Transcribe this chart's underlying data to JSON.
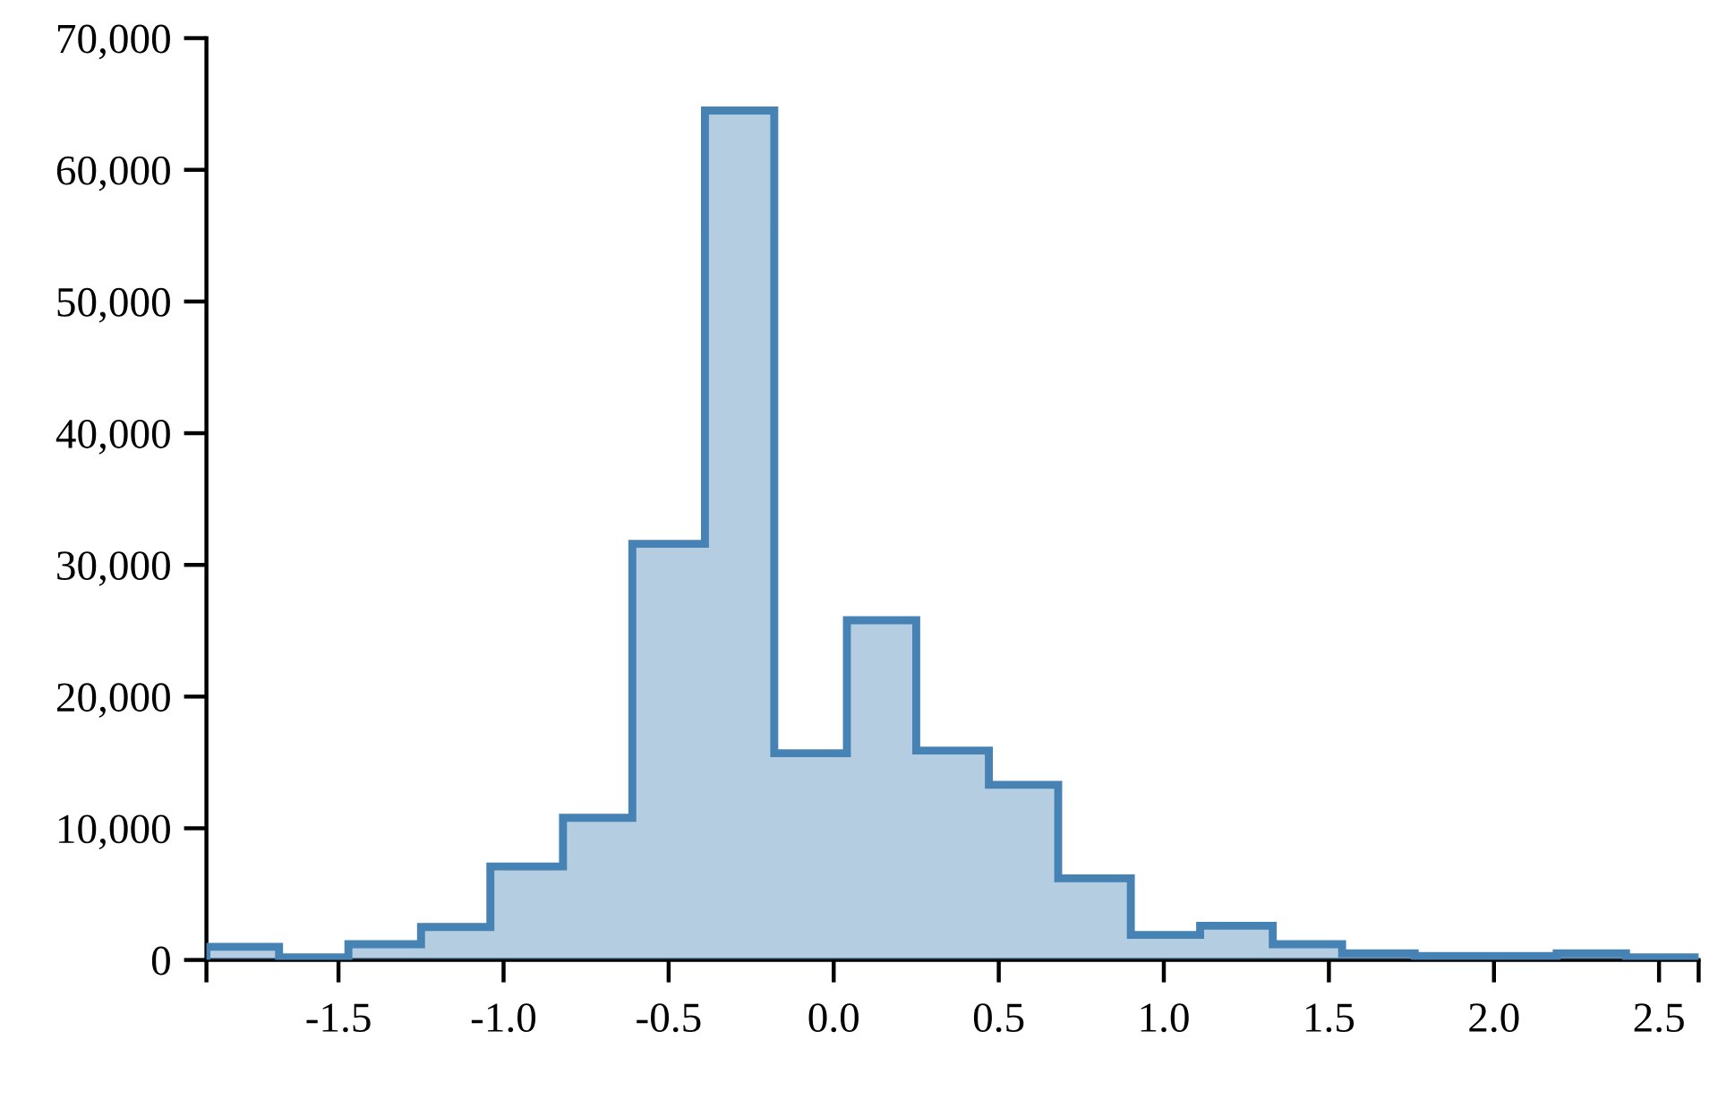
{
  "chart_data": {
    "type": "histogram",
    "bins": [
      -1.9,
      -1.68,
      -1.47,
      -1.25,
      -1.04,
      -0.82,
      -0.61,
      -0.39,
      -0.18,
      0.04,
      0.25,
      0.47,
      0.68,
      0.9,
      1.11,
      1.33,
      1.54,
      1.76,
      1.97,
      2.19,
      2.4,
      2.62
    ],
    "values": [
      1000,
      200,
      1200,
      2500,
      7100,
      10800,
      31600,
      64500,
      15700,
      25800,
      15900,
      13300,
      6200,
      1900,
      2600,
      1200,
      500,
      300,
      300,
      500,
      200
    ],
    "color": "#4682b4",
    "xlim": [
      -1.9,
      2.62
    ],
    "xticks": [
      {
        "value": -1.9,
        "label": null
      },
      {
        "value": -1.5,
        "label": "-1.5"
      },
      {
        "value": -1.0,
        "label": "-1.0"
      },
      {
        "value": -0.5,
        "label": "-0.5"
      },
      {
        "value": 0,
        "label": "0.0"
      },
      {
        "value": 0.5,
        "label": "0.5"
      },
      {
        "value": 1,
        "label": "1.0"
      },
      {
        "value": 1.5,
        "label": "1.5"
      },
      {
        "value": 2,
        "label": "2.0"
      },
      {
        "value": 2.5,
        "label": "2.5"
      },
      {
        "value": 2.62,
        "label": null
      }
    ],
    "ylim": [
      0,
      70000
    ],
    "yticks": [
      0,
      {
        "value": 10000,
        "label": "10,000"
      },
      {
        "value": 20000,
        "label": "20,000"
      },
      {
        "value": 30000,
        "label": "30,000"
      },
      {
        "value": 40000,
        "label": "40,000"
      },
      {
        "value": 50000,
        "label": "50,000"
      },
      {
        "value": 60000,
        "label": "60,000"
      },
      {
        "value": 70000,
        "label": "70,000"
      }
    ],
    "grid": false
  }
}
